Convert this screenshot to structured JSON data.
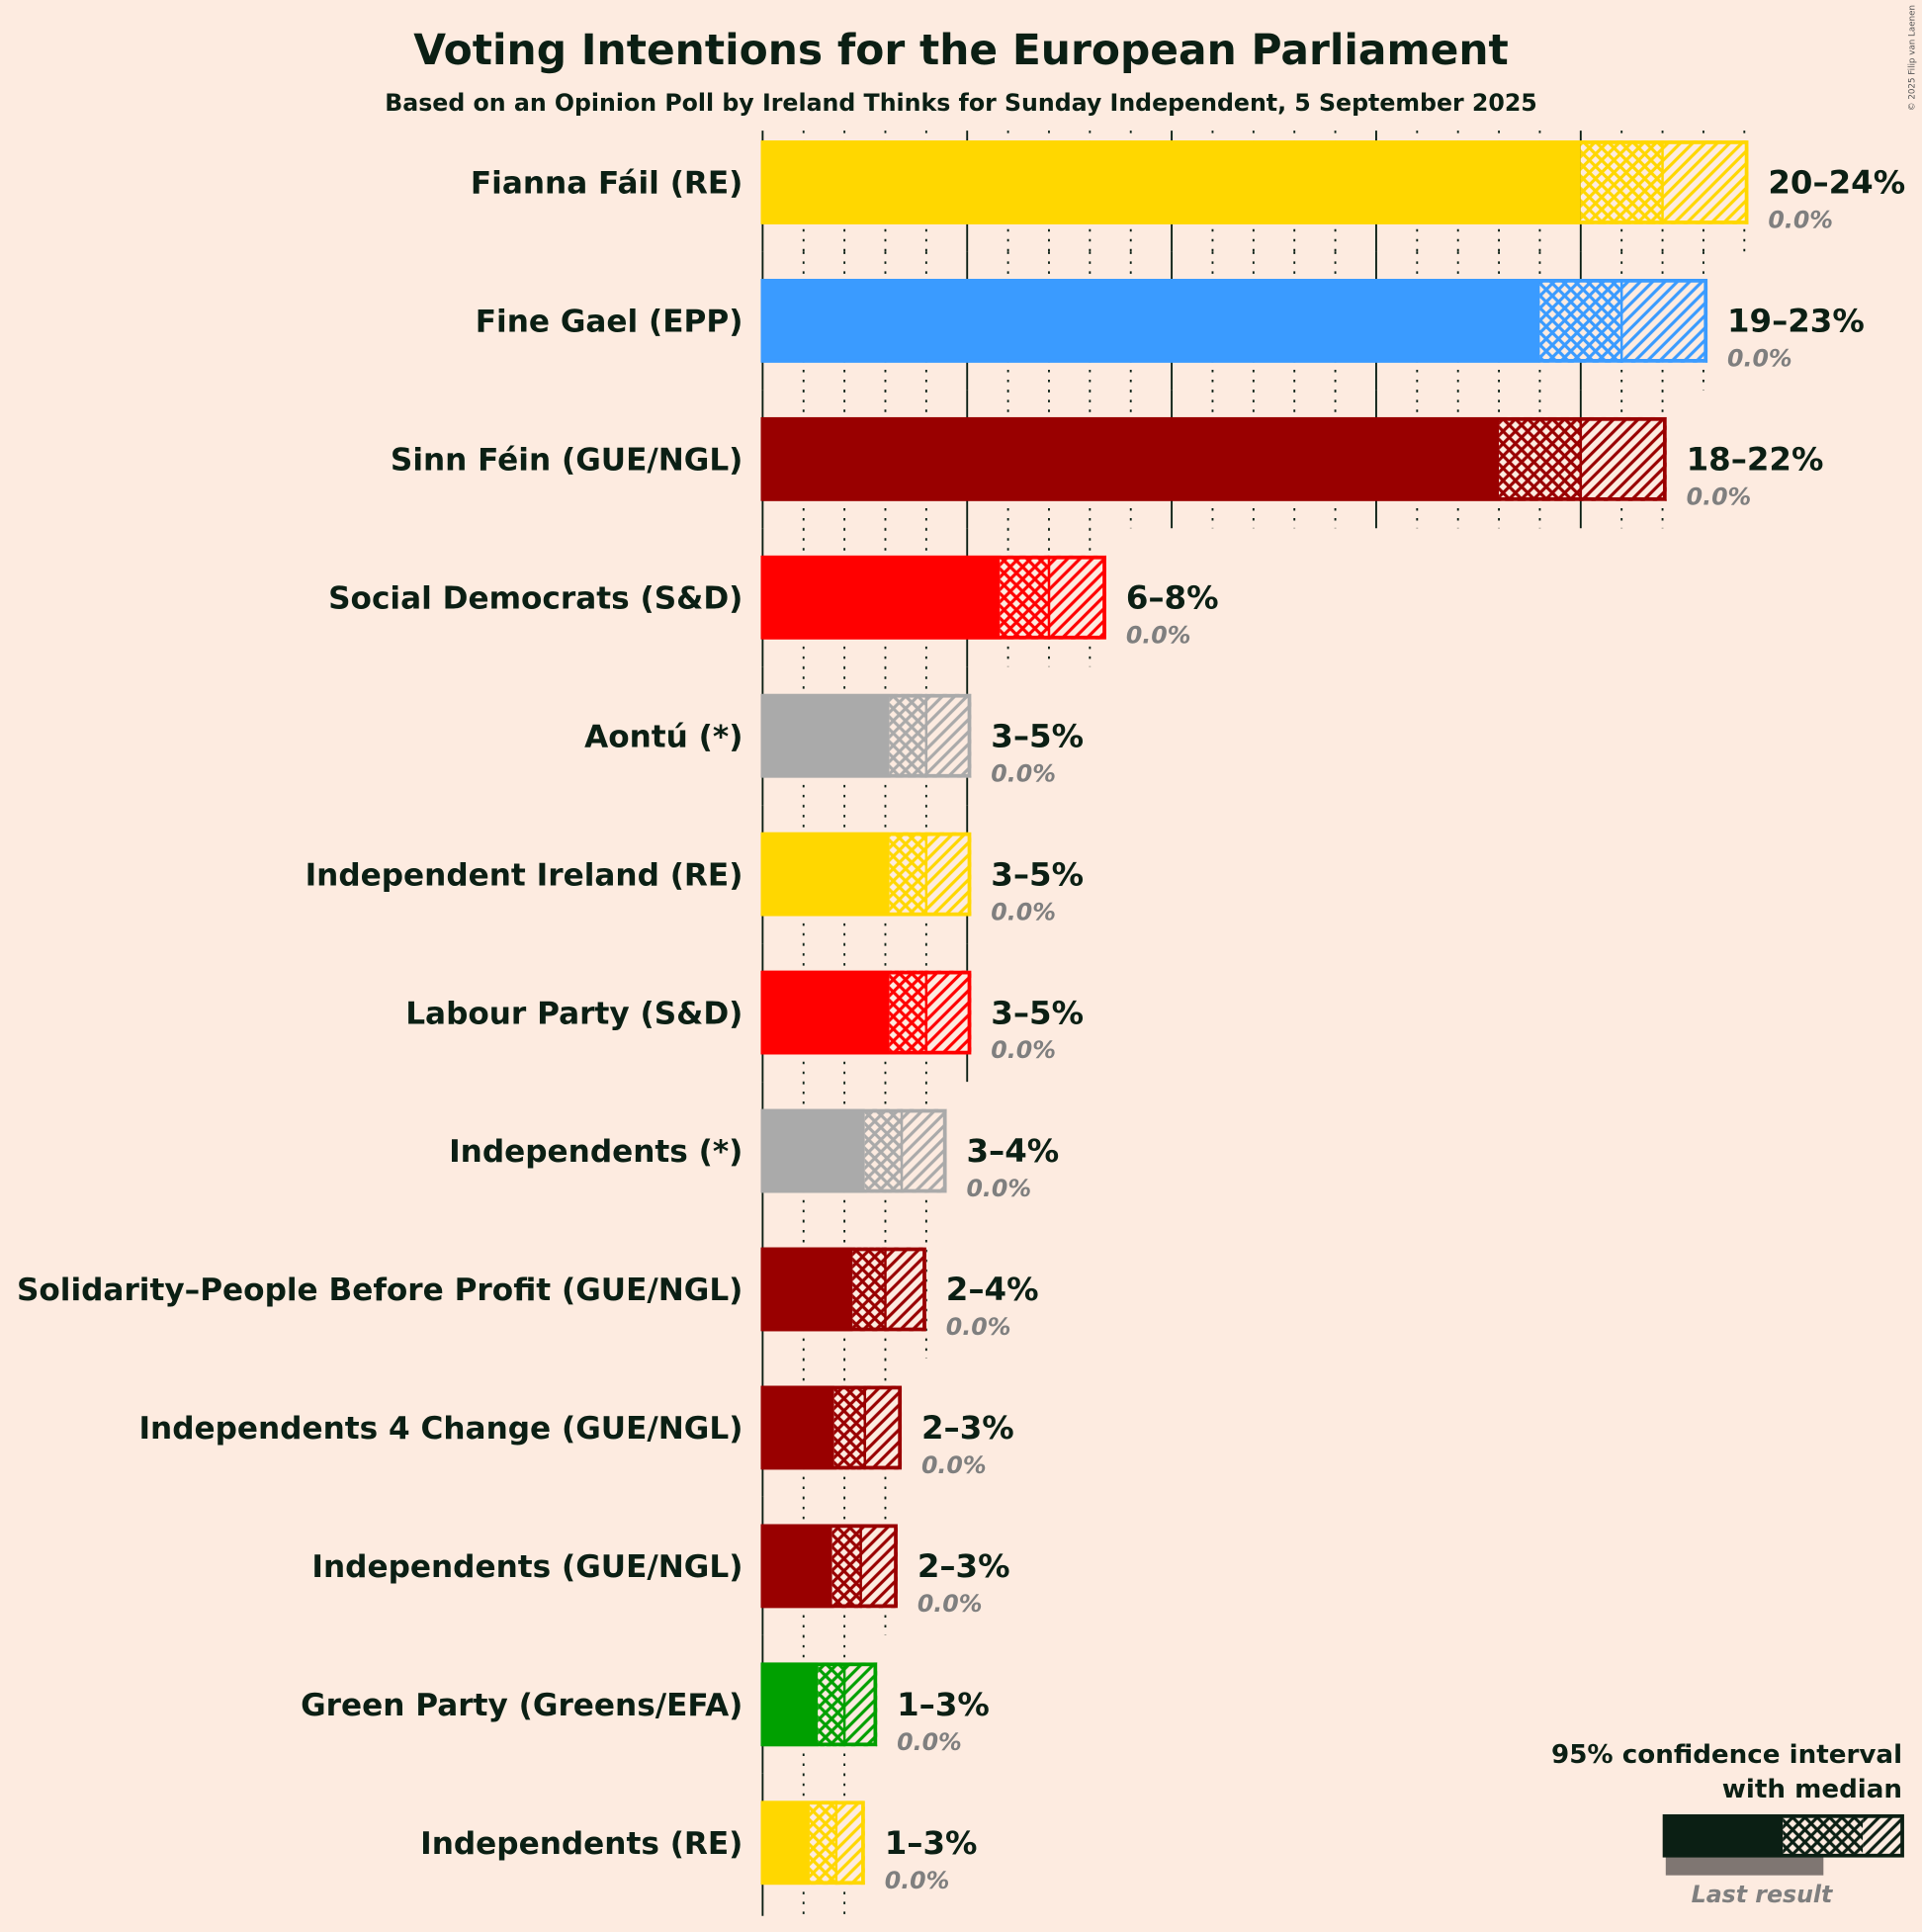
{
  "chart_data": {
    "type": "bar",
    "title": "Voting Intentions for the European Parliament",
    "subtitle": "Based on an Opinion Poll by Ireland Thinks for Sunday Independent, 5 September 2025",
    "copyright": "© 2025 Filip van Laenen",
    "xlim": [
      0,
      25
    ],
    "grid": {
      "major_every": 5,
      "minor_every": 1
    },
    "series": [
      {
        "name": "Fianna Fáil (RE)",
        "color": "#FFD700",
        "ci_low": 20,
        "median": 22,
        "ci_high": 24.1,
        "range_label": "20–24%",
        "last_result": 0.0,
        "last_label": "0.0%"
      },
      {
        "name": "Fine Gael (EPP)",
        "color": "#3A9BFF",
        "ci_low": 19,
        "median": 21,
        "ci_high": 23.1,
        "range_label": "19–23%",
        "last_result": 0.0,
        "last_label": "0.0%"
      },
      {
        "name": "Sinn Féin (GUE/NGL)",
        "color": "#990000",
        "ci_low": 18,
        "median": 20,
        "ci_high": 22.1,
        "range_label": "18–22%",
        "last_result": 0.0,
        "last_label": "0.0%"
      },
      {
        "name": "Social Democrats (S&D)",
        "color": "#FF0000",
        "ci_low": 5.8,
        "median": 7,
        "ci_high": 8.4,
        "range_label": "6–8%",
        "last_result": 0.0,
        "last_label": "0.0%"
      },
      {
        "name": "Aontú (*)",
        "color": "#AAAAAA",
        "ci_low": 3.1,
        "median": 4,
        "ci_high": 5.1,
        "range_label": "3–5%",
        "last_result": 0.0,
        "last_label": "0.0%"
      },
      {
        "name": "Independent Ireland (RE)",
        "color": "#FFD700",
        "ci_low": 3.1,
        "median": 4,
        "ci_high": 5.1,
        "range_label": "3–5%",
        "last_result": 0.0,
        "last_label": "0.0%"
      },
      {
        "name": "Labour Party (S&D)",
        "color": "#FF0000",
        "ci_low": 3.1,
        "median": 4,
        "ci_high": 5.1,
        "range_label": "3–5%",
        "last_result": 0.0,
        "last_label": "0.0%"
      },
      {
        "name": "Independents (*)",
        "color": "#AAAAAA",
        "ci_low": 2.5,
        "median": 3.4,
        "ci_high": 4.5,
        "range_label": "3–4%",
        "last_result": 0.0,
        "last_label": "0.0%"
      },
      {
        "name": "Solidarity–People Before Profit (GUE/NGL)",
        "color": "#990000",
        "ci_low": 2.2,
        "median": 3,
        "ci_high": 4,
        "range_label": "2–4%",
        "last_result": 0.0,
        "last_label": "0.0%"
      },
      {
        "name": "Independents 4 Change (GUE/NGL)",
        "color": "#990000",
        "ci_low": 1.75,
        "median": 2.5,
        "ci_high": 3.4,
        "range_label": "2–3%",
        "last_result": 0.0,
        "last_label": "0.0%"
      },
      {
        "name": "Independents (GUE/NGL)",
        "color": "#990000",
        "ci_low": 1.7,
        "median": 2.4,
        "ci_high": 3.3,
        "range_label": "2–3%",
        "last_result": 0.0,
        "last_label": "0.0%"
      },
      {
        "name": "Green Party (Greens/EFA)",
        "color": "#00A000",
        "ci_low": 1.35,
        "median": 2,
        "ci_high": 2.8,
        "range_label": "1–3%",
        "last_result": 0.0,
        "last_label": "0.0%"
      },
      {
        "name": "Independents (RE)",
        "color": "#FFD700",
        "ci_low": 1.15,
        "median": 1.8,
        "ci_high": 2.5,
        "range_label": "1–3%",
        "last_result": 0.0,
        "last_label": "0.0%"
      }
    ],
    "legend": {
      "line1": "95% confidence interval",
      "line2": "with median",
      "last_result_label": "Last result",
      "placement": "bottom-right",
      "color": "#0B1F14",
      "last_color": "#7F7672"
    }
  }
}
